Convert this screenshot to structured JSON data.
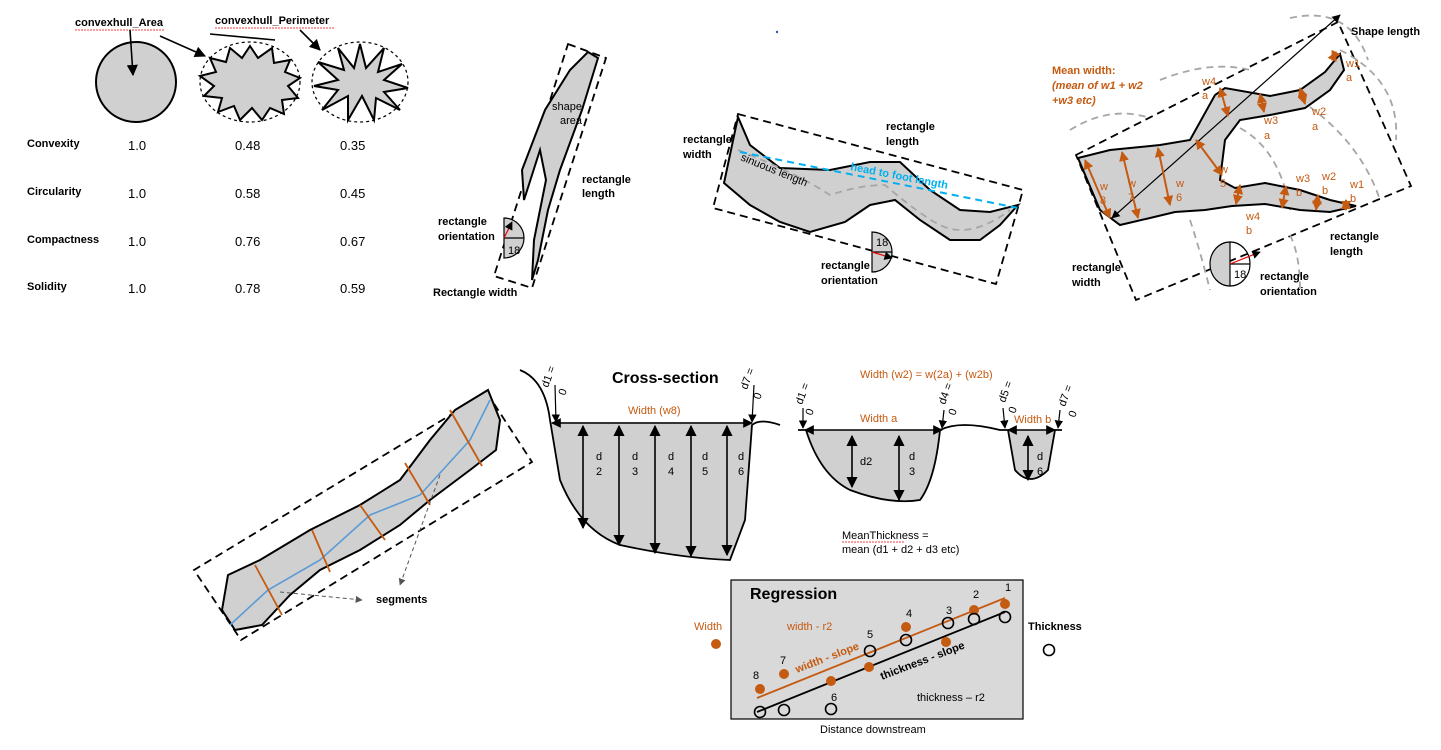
{
  "convex": {
    "area_label": "convexhull_Area",
    "perimeter_label": "convexhull_Perimeter",
    "metrics": [
      {
        "name": "Convexity",
        "values": [
          "1.0",
          "0.48",
          "0.35"
        ]
      },
      {
        "name": "Circularity",
        "values": [
          "1.0",
          "0.58",
          "0.45"
        ]
      },
      {
        "name": "Compactness",
        "values": [
          "1.0",
          "0.76",
          "0.67"
        ]
      },
      {
        "name": "Solidity",
        "values": [
          "1.0",
          "0.78",
          "0.59"
        ]
      }
    ]
  },
  "rect1": {
    "shape_area": "shape area",
    "rectangle_length": "rectangle length",
    "rectangle_orientation": "rectangle orientation",
    "rectangle_width": "Rectangle width",
    "dial_value": "18"
  },
  "rect2": {
    "rectangle_width": "rectangle width",
    "rectangle_length": "rectangle length",
    "sinuous_length": "sinuous length",
    "head_to_foot": "head to foot length",
    "rectangle_orientation": "rectangle orientation",
    "dial_value": "18"
  },
  "rect3": {
    "shape_length": "Shape length",
    "mean_width_title": "Mean width:",
    "mean_width_line1": "(mean of w1 + w2",
    "mean_width_line2": "+w3 etc)",
    "rectangle_width": "rectangle width",
    "rectangle_length": "rectangle length",
    "rectangle_orientation": "rectangle orientation",
    "dial_value": "18",
    "widths": [
      "w1 a",
      "w2 a",
      "w3 a",
      "w4 a",
      "w1 b",
      "w2 b",
      "w3 b",
      "w4 b",
      "w 5",
      "w 6",
      "w 7",
      "w 8"
    ]
  },
  "segments": {
    "label": "segments"
  },
  "cross_section": {
    "title": "Cross-section",
    "width_w8": "Width (w8)",
    "d1": "d1 = 0",
    "d7": "d7 = 0",
    "depths": [
      "d 2",
      "d 3",
      "d 4",
      "d 5",
      "d 6"
    ],
    "width_w2": "Width (w2) = w(2a) + (w2b)",
    "width_a": "Width a",
    "width_b": "Width b",
    "d4": "d4 = 0",
    "d5": "d5 = 0",
    "d2b": "d2",
    "d3b": "d 3",
    "d6b": "d 6",
    "mean_thickness_1": "MeanThickness =",
    "mean_thickness_2": "mean (d1 + d2 + d3 etc)"
  },
  "regression": {
    "title": "Regression",
    "width_legend": "Width",
    "thickness_legend": "Thickness",
    "width_r2": "width - r2",
    "width_slope": "width - slope",
    "thickness_slope": "thickness - slope",
    "thickness_r2": "thickness – r2",
    "xlabel": "Distance downstream",
    "point_labels": [
      "1",
      "2",
      "3",
      "4",
      "5",
      "6",
      "7",
      "8"
    ],
    "colors": {
      "width": "#c55a11",
      "thickness": "#000000",
      "panel": "#d9d9d9"
    }
  }
}
